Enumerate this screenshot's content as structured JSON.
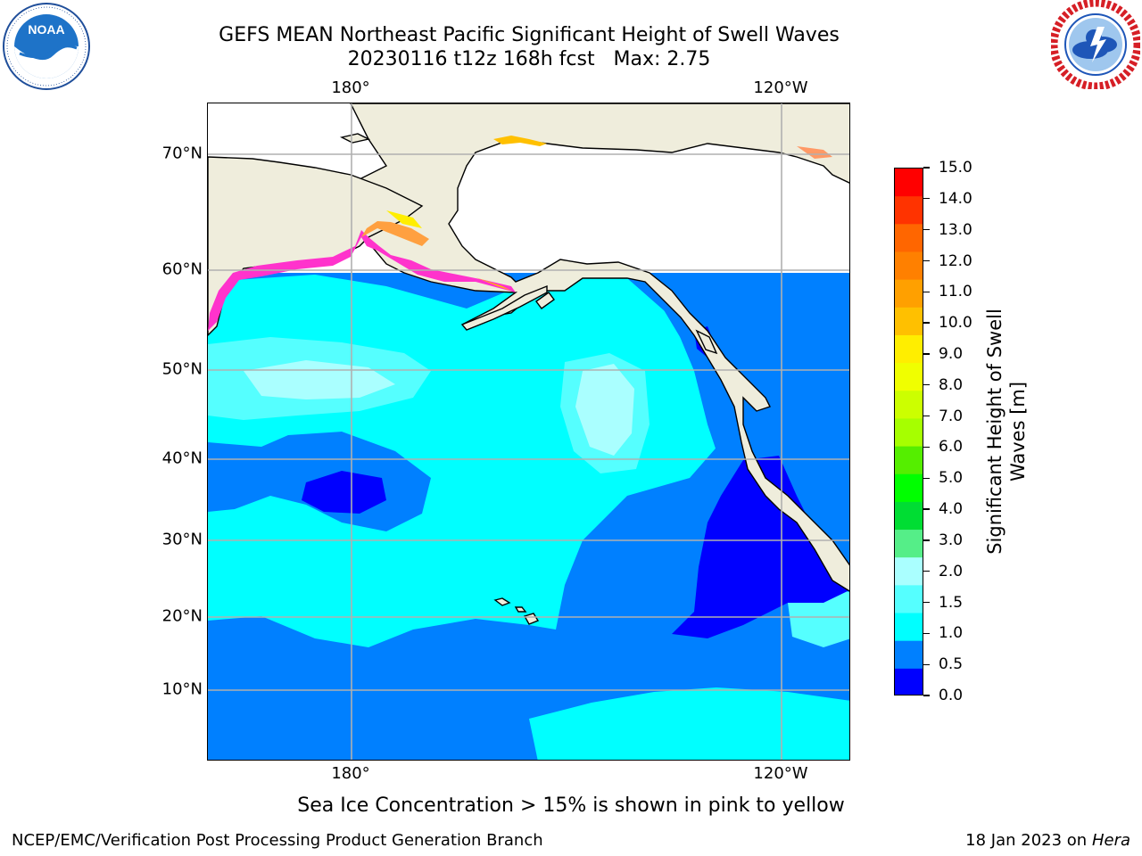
{
  "title": {
    "line1": "GEFS MEAN Northeast Pacific Significant Height of Swell Waves",
    "line2": "20230116 t12z 168h fcst   Max: 2.75"
  },
  "logos": {
    "left": {
      "name": "NOAA",
      "icon": "noaa-logo",
      "ring_text": "NATIONAL OCEANIC AND ATMOSPHERIC ADMINISTRATION · U.S. DEPARTMENT OF COMMERCE"
    },
    "right": {
      "name": "National Weather Service",
      "icon": "nws-logo",
      "ring_text": "NATIONAL WEATHER SERVICE"
    }
  },
  "map": {
    "lon_labels_top": [
      "180°",
      "120°W"
    ],
    "lon_labels_bottom": [
      "180°",
      "120°W"
    ],
    "lat_labels": [
      "70°N",
      "60°N",
      "50°N",
      "40°N",
      "30°N",
      "20°N",
      "10°N"
    ],
    "land_color": "#efeddc",
    "gridlines": true
  },
  "colorbar": {
    "title_line1": "Significant Height of Swell",
    "title_line2": "Waves [m]",
    "ticks": [
      "15.0",
      "14.0",
      "13.0",
      "12.0",
      "11.0",
      "10.0",
      "9.0",
      "8.0",
      "7.0",
      "6.0",
      "5.0",
      "4.0",
      "3.0",
      "2.0",
      "1.5",
      "1.0",
      "0.5",
      "0.0"
    ],
    "colors_top_to_bottom": [
      "#ff0000",
      "#ff3300",
      "#ff6600",
      "#ff8000",
      "#ffa000",
      "#ffc000",
      "#ffee00",
      "#f0ff00",
      "#ccff00",
      "#a6ff00",
      "#55ee00",
      "#00ff00",
      "#00dd33",
      "#55ee88",
      "#aaffff",
      "#55ffff",
      "#00ffff",
      "#0080ff",
      "#0000ff"
    ]
  },
  "note": "Sea Ice Concentration > 15% is shown in pink to yellow",
  "footer": {
    "left": "NCEP/EMC/Verification Post Processing Product Generation Branch",
    "right_prefix": "18 Jan 2023 on ",
    "right_host": "Hera"
  }
}
